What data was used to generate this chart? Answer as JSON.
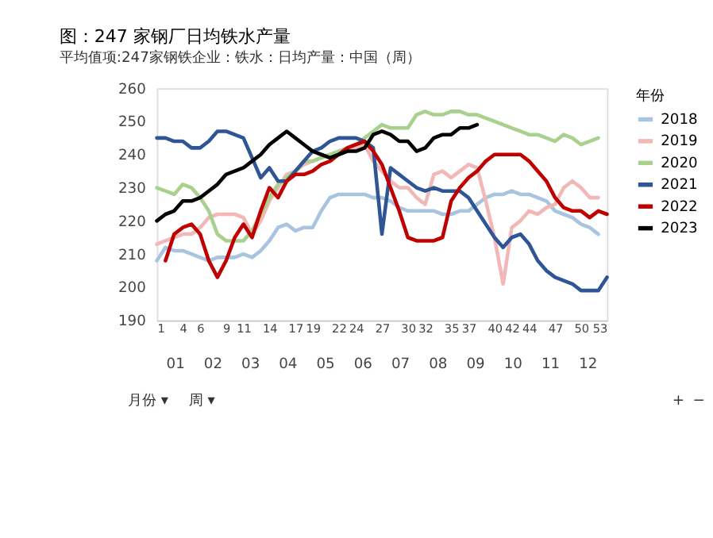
{
  "chart_data": {
    "type": "line",
    "title": "图：247 家钢厂日均铁水产量",
    "subtitle": "平均值项:247家钢铁企业：铁水：日均产量：中国（周）",
    "legend_title": "年份",
    "x": [
      1,
      2,
      3,
      4,
      5,
      6,
      7,
      8,
      9,
      10,
      11,
      12,
      13,
      14,
      15,
      16,
      17,
      18,
      19,
      20,
      21,
      22,
      23,
      24,
      25,
      26,
      27,
      28,
      29,
      30,
      31,
      32,
      33,
      34,
      35,
      36,
      37,
      38,
      39,
      40,
      41,
      42,
      43,
      44,
      45,
      46,
      47,
      48,
      49,
      50,
      51,
      52,
      53
    ],
    "series": [
      {
        "name": "2018",
        "color": "#a9c4e0",
        "values": [
          208,
          212,
          211,
          211,
          210,
          209,
          208,
          209,
          209,
          209,
          210,
          209,
          211,
          214,
          218,
          219,
          217,
          218,
          218,
          223,
          227,
          228,
          228,
          228,
          228,
          227,
          227,
          226,
          224,
          223,
          223,
          223,
          223,
          222,
          222,
          223,
          223,
          225,
          227,
          228,
          228,
          229,
          228,
          228,
          227,
          226,
          223,
          222,
          221,
          219,
          218,
          216,
          null
        ]
      },
      {
        "name": "2019",
        "color": "#f2b8b8",
        "values": [
          213,
          214,
          215,
          216,
          216,
          218,
          221,
          222,
          222,
          222,
          221,
          216,
          220,
          226,
          230,
          234,
          235,
          237,
          238,
          239,
          240,
          240,
          241,
          242,
          243,
          238,
          235,
          232,
          230,
          230,
          227,
          225,
          234,
          235,
          233,
          235,
          237,
          236,
          226,
          215,
          201,
          218,
          220,
          223,
          222,
          224,
          225,
          230,
          232,
          230,
          227,
          227,
          null
        ]
      },
      {
        "name": "2020",
        "color": "#a9d18e",
        "values": [
          230,
          229,
          228,
          231,
          230,
          227,
          223,
          216,
          214,
          214,
          214,
          217,
          222,
          227,
          231,
          233,
          235,
          238,
          238,
          239,
          240,
          241,
          242,
          243,
          245,
          247,
          249,
          248,
          248,
          248,
          252,
          253,
          252,
          252,
          253,
          253,
          252,
          252,
          251,
          250,
          249,
          248,
          247,
          246,
          246,
          245,
          244,
          246,
          245,
          243,
          244,
          245,
          null
        ]
      },
      {
        "name": "2021",
        "color": "#2f5597",
        "values": [
          245,
          245,
          244,
          244,
          242,
          242,
          244,
          247,
          247,
          246,
          245,
          239,
          233,
          236,
          232,
          232,
          235,
          238,
          241,
          242,
          244,
          245,
          245,
          245,
          244,
          242,
          216,
          236,
          234,
          232,
          230,
          229,
          230,
          229,
          229,
          229,
          227,
          223,
          219,
          215,
          212,
          215,
          216,
          213,
          208,
          205,
          203,
          202,
          201,
          199,
          199,
          199,
          203
        ]
      },
      {
        "name": "2022",
        "color": "#c00000",
        "values": [
          null,
          208,
          216,
          218,
          219,
          216,
          208,
          203,
          208,
          215,
          219,
          215,
          223,
          230,
          227,
          232,
          234,
          234,
          235,
          237,
          238,
          240,
          242,
          243,
          244,
          241,
          237,
          230,
          223,
          215,
          214,
          214,
          214,
          215,
          226,
          230,
          233,
          235,
          238,
          240,
          240,
          240,
          240,
          238,
          235,
          232,
          227,
          224,
          223,
          223,
          221,
          223,
          222
        ]
      },
      {
        "name": "2023",
        "color": "#000000",
        "values": [
          220,
          222,
          223,
          226,
          226,
          227,
          229,
          231,
          234,
          235,
          236,
          238,
          240,
          243,
          245,
          247,
          245,
          243,
          241,
          240,
          239,
          240,
          241,
          241,
          242,
          246,
          247,
          246,
          244,
          244,
          241,
          242,
          245,
          246,
          246,
          248,
          248,
          249,
          null,
          null,
          null,
          null,
          null,
          null,
          null,
          null,
          null,
          null,
          null,
          null,
          null,
          null,
          null
        ]
      }
    ],
    "xlim": [
      1,
      53
    ],
    "xticks": [
      1,
      4,
      6,
      9,
      11,
      14,
      17,
      19,
      22,
      24,
      27,
      30,
      32,
      35,
      37,
      40,
      42,
      44,
      47,
      50,
      53
    ],
    "ylim": [
      190,
      260
    ],
    "yticks": [
      190,
      200,
      210,
      220,
      230,
      240,
      250,
      260
    ],
    "grid": false,
    "legend": "right",
    "marker": "none",
    "line_style": "solid",
    "annotations": [
      "01",
      "02",
      "03",
      "04",
      "05",
      "06",
      "07",
      "08",
      "09",
      "10",
      "11",
      "12",
      "月份 ▾",
      "周 ▾",
      "+",
      "−"
    ]
  }
}
